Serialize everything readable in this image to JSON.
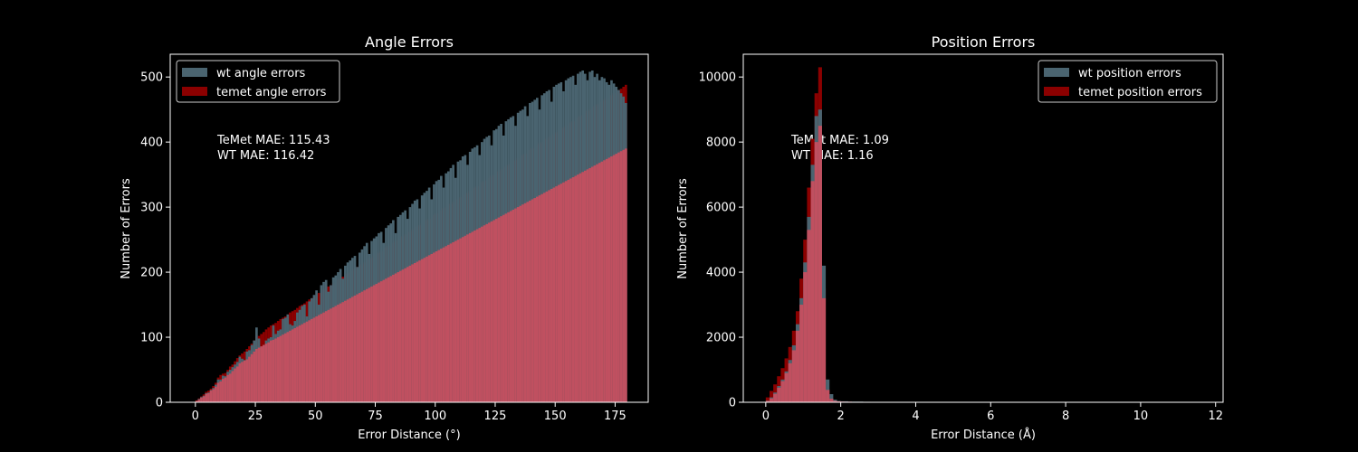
{
  "chart_data": [
    {
      "type": "histogram",
      "title": "Angle Errors",
      "xlabel": "Error Distance (°)",
      "ylabel": "Number of Errors",
      "xlim": [
        -10.5,
        188.8
      ],
      "ylim": [
        0,
        535
      ],
      "xticks": [
        0,
        25,
        50,
        75,
        100,
        125,
        150,
        175
      ],
      "yticks": [
        0,
        100,
        200,
        300,
        400,
        500
      ],
      "legend_position": "upper-left",
      "annotation": [
        "TeMet MAE: 115.43",
        "WT MAE: 116.42"
      ],
      "bin_start": 0,
      "bin_width": 1,
      "series": [
        {
          "name": "wt angle errors",
          "color": "#4a6470",
          "values": [
            2,
            5,
            8,
            10,
            14,
            15,
            19,
            22,
            27,
            35,
            35,
            41,
            40,
            47,
            50,
            54,
            58,
            62,
            70,
            67,
            65,
            78,
            80,
            88,
            95,
            115,
            98,
            85,
            88,
            95,
            98,
            100,
            118,
            105,
            110,
            112,
            128,
            130,
            135,
            120,
            118,
            125,
            138,
            142,
            148,
            150,
            132,
            155,
            160,
            165,
            172,
            150,
            180,
            185,
            188,
            170,
            180,
            192,
            195,
            200,
            205,
            190,
            210,
            215,
            218,
            222,
            225,
            208,
            230,
            235,
            240,
            245,
            228,
            248,
            252,
            255,
            260,
            262,
            245,
            268,
            272,
            275,
            280,
            260,
            285,
            288,
            292,
            295,
            282,
            300,
            305,
            310,
            312,
            298,
            318,
            322,
            325,
            330,
            312,
            335,
            340,
            342,
            348,
            330,
            352,
            355,
            360,
            365,
            345,
            370,
            372,
            378,
            380,
            365,
            385,
            390,
            392,
            395,
            380,
            400,
            405,
            408,
            410,
            395,
            418,
            420,
            425,
            428,
            410,
            432,
            435,
            438,
            440,
            425,
            445,
            448,
            450,
            455,
            440,
            460,
            462,
            465,
            468,
            450,
            472,
            475,
            478,
            480,
            462,
            485,
            488,
            490,
            492,
            478,
            495,
            498,
            500,
            502,
            488,
            505,
            508,
            510,
            505,
            495,
            508,
            510,
            500,
            505,
            495,
            500,
            498,
            492,
            488,
            495,
            490,
            485,
            480,
            475,
            470,
            460
          ]
        },
        {
          "name": "temet angle errors",
          "color": "#8b0000",
          "values": [
            3,
            6,
            9,
            12,
            16,
            18,
            21,
            25,
            30,
            38,
            42,
            44,
            45,
            50,
            55,
            58,
            63,
            68,
            72,
            75,
            78,
            82,
            86,
            90,
            95,
            100,
            102,
            105,
            108,
            112,
            115,
            118,
            120,
            122,
            125,
            128,
            130,
            132,
            135,
            138,
            140,
            142,
            145,
            148,
            150,
            152,
            155,
            158,
            160,
            163,
            165,
            168,
            170,
            173,
            175,
            178,
            180,
            183,
            185,
            188,
            190,
            193,
            195,
            198,
            200,
            202,
            205,
            208,
            210,
            212,
            215,
            218,
            220,
            222,
            225,
            228,
            230,
            232,
            235,
            238,
            240,
            242,
            245,
            248,
            250,
            252,
            255,
            258,
            260,
            262,
            265,
            268,
            270,
            272,
            275,
            278,
            280,
            282,
            285,
            288,
            290,
            292,
            295,
            298,
            300,
            302,
            305,
            308,
            310,
            312,
            315,
            318,
            320,
            322,
            325,
            328,
            330,
            332,
            335,
            338,
            340,
            342,
            345,
            348,
            350,
            352,
            355,
            358,
            360,
            362,
            365,
            368,
            370,
            372,
            375,
            378,
            380,
            382,
            385,
            388,
            390,
            392,
            395,
            398,
            400,
            402,
            405,
            408,
            410,
            412,
            415,
            418,
            420,
            422,
            425,
            428,
            430,
            432,
            435,
            438,
            440,
            442,
            445,
            448,
            450,
            452,
            455,
            458,
            460,
            462,
            465,
            468,
            470,
            472,
            475,
            478,
            480,
            482,
            485,
            488
          ]
        },
        {
          "name": "",
          "color": "#c05060",
          "values": [
            2,
            4,
            7,
            9,
            13,
            14,
            18,
            20,
            24,
            30,
            32,
            36,
            38,
            42,
            44,
            48,
            52,
            55,
            60,
            62,
            64,
            66,
            70,
            74,
            78,
            82,
            84,
            86,
            88,
            90,
            92,
            95,
            96,
            98,
            100,
            102,
            104,
            106,
            108,
            110,
            112,
            114,
            116,
            118,
            120,
            122,
            124,
            126,
            128,
            130,
            132,
            134,
            136,
            138,
            140,
            142,
            144,
            146,
            148,
            150,
            152,
            154,
            156,
            158,
            160,
            162,
            164,
            166,
            168,
            170,
            172,
            174,
            176,
            178,
            180,
            182,
            184,
            186,
            188,
            190,
            192,
            194,
            196,
            198,
            200,
            202,
            204,
            206,
            208,
            210,
            212,
            214,
            216,
            218,
            220,
            222,
            224,
            226,
            228,
            230,
            232,
            234,
            236,
            238,
            240,
            242,
            244,
            246,
            248,
            250,
            252,
            254,
            256,
            258,
            260,
            262,
            264,
            266,
            268,
            270,
            272,
            274,
            276,
            278,
            280,
            282,
            284,
            286,
            288,
            290,
            292,
            294,
            296,
            298,
            300,
            302,
            304,
            306,
            308,
            310,
            312,
            314,
            316,
            318,
            320,
            322,
            324,
            326,
            328,
            330,
            332,
            334,
            336,
            338,
            340,
            342,
            344,
            346,
            348,
            350,
            352,
            354,
            356,
            358,
            360,
            362,
            364,
            366,
            368,
            370,
            372,
            374,
            376,
            378,
            380,
            382,
            384,
            386,
            388,
            390
          ]
        }
      ]
    },
    {
      "type": "histogram",
      "title": "Position Errors",
      "xlabel": "Error Distance (Å)",
      "ylabel": "Number of Errors",
      "xlim": [
        -0.6,
        12.2
      ],
      "ylim": [
        0,
        10700
      ],
      "xticks": [
        0,
        2,
        4,
        6,
        8,
        10,
        12
      ],
      "yticks": [
        0,
        2000,
        4000,
        6000,
        8000,
        10000
      ],
      "legend_position": "upper-right",
      "annotation": [
        "TeMet MAE: 1.09",
        "WT MAE: 1.16"
      ],
      "bin_start": 0,
      "bin_width": 0.1,
      "series": [
        {
          "name": "wt position errors",
          "color": "#4a6470",
          "values": [
            50,
            150,
            300,
            500,
            700,
            950,
            1300,
            1750,
            2400,
            3200,
            4300,
            5700,
            7300,
            8800,
            9000,
            4200,
            700,
            250,
            80,
            40,
            30,
            30,
            20,
            20,
            20,
            20,
            15,
            15,
            10,
            10,
            10,
            10,
            10,
            8,
            8,
            8,
            6,
            6,
            6,
            5,
            5,
            5,
            4,
            4,
            4,
            3,
            3,
            3,
            2,
            2
          ]
        },
        {
          "name": "temet position errors",
          "color": "#8b0000",
          "values": [
            150,
            350,
            550,
            800,
            1050,
            1350,
            1700,
            2200,
            2800,
            3800,
            5000,
            6600,
            8100,
            9500,
            10300,
            3500,
            400,
            120,
            50,
            30,
            25,
            20,
            20,
            15,
            15,
            15,
            12,
            12,
            10,
            10,
            8,
            8,
            8,
            6,
            6,
            6,
            5,
            5,
            5,
            4,
            4,
            4,
            3,
            3,
            3,
            2,
            2,
            2,
            1,
            1
          ]
        },
        {
          "name": "",
          "color": "#c05060",
          "values": [
            40,
            120,
            260,
            450,
            650,
            900,
            1200,
            1600,
            2200,
            3000,
            4000,
            5300,
            6800,
            8000,
            8500,
            3200,
            380,
            110,
            45,
            28,
            22,
            18,
            16,
            14,
            13,
            12,
            10,
            10,
            8,
            8,
            7,
            7,
            7,
            5,
            5,
            5,
            4,
            4,
            4,
            3,
            3,
            3,
            2,
            2,
            2,
            1,
            1,
            1,
            1,
            1
          ]
        }
      ]
    }
  ]
}
